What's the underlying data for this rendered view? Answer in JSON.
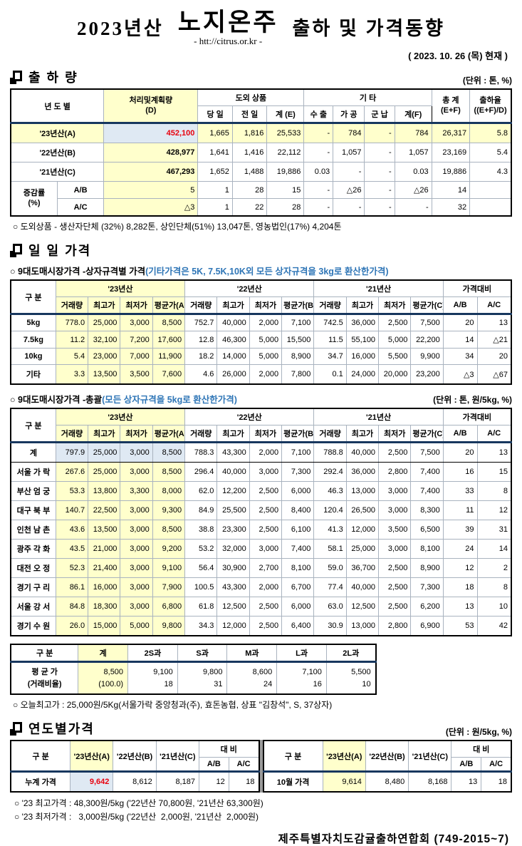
{
  "page": {
    "title_prefix": "2023년산",
    "title_main": "노지온주",
    "title_url": "- htt://citrus.or.kr -",
    "title_suffix": "출하 및 가격동향",
    "date_line": "( 2023. 10. 26 (목) 현재 )",
    "footer": "제주특별자치도감귤출하연합회 (749-2015~7)"
  },
  "colors": {
    "highlight_yellow": "#ffffcc",
    "highlight_blue": "#dfe9f3",
    "accent_red": "#e8000d",
    "note_blue": "#2e75b6",
    "header_line_navy": "#17375e"
  },
  "shipment": {
    "section_title": "출 하 량",
    "unit": "(단위 : 톤, %)",
    "headers": {
      "year": "년 도 별",
      "plan1": "처리및계획량",
      "plan2": "(D)",
      "group_island": "도외 상품",
      "day": "당 일",
      "prev": "전 일",
      "sumE": "계 (E)",
      "group_etc": "기          타",
      "export": "수 출",
      "process": "가 공",
      "military": "군 납",
      "sumF": "계(F)",
      "total1": "총  계",
      "total2": "(E+F)",
      "rate1": "출하율",
      "rate2": "((E+F)/D)"
    },
    "rows": [
      {
        "label": "'23년산(A)",
        "plan": "452,100",
        "cells": [
          "1,665",
          "1,816",
          "25,533",
          "-",
          "784",
          "-",
          "784",
          "26,317",
          "5.8"
        ]
      },
      {
        "label": "'22년산(B)",
        "plan": "428,977",
        "cells": [
          "1,641",
          "1,416",
          "22,112",
          "-",
          "1,057",
          "-",
          "1,057",
          "23,169",
          "5.4"
        ]
      },
      {
        "label": "'21년산(C)",
        "plan": "467,293",
        "cells": [
          "1,652",
          "1,488",
          "19,886",
          "0.03",
          "-",
          "-",
          "0.03",
          "19,886",
          "4.3"
        ]
      }
    ],
    "change_label1": "증감률",
    "change_label2": "(%)",
    "change_rows": [
      {
        "label": "A/B",
        "plan": "5",
        "cells": [
          "1",
          "28",
          "15",
          "-",
          "△26",
          "-",
          "△26",
          "14",
          ""
        ]
      },
      {
        "label": "A/C",
        "plan": "△3",
        "cells": [
          "1",
          "22",
          "28",
          "-",
          "-",
          "-",
          "-",
          "32",
          ""
        ]
      }
    ],
    "note": "○ 도외상품 - 생산자단체 (32%) 8,282톤, 상인단체(51%) 13,047톤, 영농법인(17%) 4,204톤"
  },
  "daily": {
    "section_title": "일 일 가격",
    "box_sub_black": "○ 9대도매시장가격 -상자규격별 가격",
    "box_sub_blue": "(기타가격은 5K, 7.5K,10K외 모든 상자규격을 3kg로 환산한가격)",
    "col_group_label": "구  분",
    "year_groups": [
      "'23년산",
      "'22년산",
      "'21년산"
    ],
    "sub_cols_23": [
      "거래량",
      "최고가",
      "최저가",
      "평균가(A)"
    ],
    "sub_cols_22": [
      "거래량",
      "최고가",
      "최저가",
      "평균가(B)"
    ],
    "sub_cols_21": [
      "거래량",
      "최고가",
      "최저가",
      "평균가(C)"
    ],
    "compare_label": "가격대비",
    "compare_cols": [
      "A/B",
      "A/C"
    ],
    "box_rows": [
      [
        "5kg",
        "778.0",
        "25,000",
        "3,000",
        "8,500",
        "752.7",
        "40,000",
        "2,000",
        "7,100",
        "742.5",
        "36,000",
        "2,500",
        "7,500",
        "20",
        "13"
      ],
      [
        "7.5kg",
        "11.2",
        "32,100",
        "7,200",
        "17,600",
        "12.8",
        "46,300",
        "5,000",
        "15,500",
        "11.5",
        "55,100",
        "5,000",
        "22,200",
        "14",
        "△21"
      ],
      [
        "10kg",
        "5.4",
        "23,000",
        "7,000",
        "11,900",
        "18.2",
        "14,000",
        "5,000",
        "8,900",
        "34.7",
        "16,000",
        "5,500",
        "9,900",
        "34",
        "20"
      ],
      [
        "기타",
        "3.3",
        "13,500",
        "3,500",
        "7,600",
        "4.6",
        "26,000",
        "2,000",
        "7,800",
        "0.1",
        "24,000",
        "20,000",
        "23,200",
        "△3",
        "△67"
      ]
    ],
    "total_sub_black": "○ 9대도매시장가격 -총괄",
    "total_sub_blue": "(모든 상자규격을 5kg로 환산한가격)",
    "total_unit": "(단위 : 톤, 원/5kg, %)",
    "total_rows": [
      [
        "계",
        "797.9",
        "25,000",
        "3,000",
        "8,500",
        "788.3",
        "43,300",
        "2,000",
        "7,100",
        "788.8",
        "40,000",
        "2,500",
        "7,500",
        "20",
        "13"
      ],
      [
        "서울 가 락",
        "267.6",
        "25,000",
        "3,000",
        "8,500",
        "296.4",
        "40,000",
        "3,000",
        "7,300",
        "292.4",
        "36,000",
        "2,800",
        "7,400",
        "16",
        "15"
      ],
      [
        "부산 엄 궁",
        "53.3",
        "13,800",
        "3,300",
        "8,000",
        "62.0",
        "12,200",
        "2,500",
        "6,000",
        "46.3",
        "13,000",
        "3,000",
        "7,400",
        "33",
        "8"
      ],
      [
        "대구 북 부",
        "140.7",
        "22,500",
        "3,000",
        "9,300",
        "84.9",
        "25,500",
        "2,500",
        "8,400",
        "120.4",
        "26,500",
        "3,000",
        "8,300",
        "11",
        "12"
      ],
      [
        "인천 남 촌",
        "43.6",
        "13,500",
        "3,000",
        "8,500",
        "38.8",
        "23,300",
        "2,500",
        "6,100",
        "41.3",
        "12,000",
        "3,500",
        "6,500",
        "39",
        "31"
      ],
      [
        "광주 각 화",
        "43.5",
        "21,000",
        "3,000",
        "9,200",
        "53.2",
        "32,000",
        "3,000",
        "7,400",
        "58.1",
        "25,000",
        "3,000",
        "8,100",
        "24",
        "14"
      ],
      [
        "대전 오 정",
        "52.3",
        "21,400",
        "3,000",
        "9,100",
        "56.4",
        "30,900",
        "2,700",
        "8,100",
        "59.0",
        "36,700",
        "2,500",
        "8,900",
        "12",
        "2"
      ],
      [
        "경기 구 리",
        "86.1",
        "16,000",
        "3,000",
        "7,900",
        "100.5",
        "43,300",
        "2,000",
        "6,700",
        "77.4",
        "40,000",
        "2,500",
        "7,300",
        "18",
        "8"
      ],
      [
        "서울 강 서",
        "84.8",
        "18,300",
        "3,000",
        "6,800",
        "61.8",
        "12,500",
        "2,500",
        "6,000",
        "63.0",
        "12,500",
        "2,500",
        "6,200",
        "13",
        "10"
      ],
      [
        "경기 수 원",
        "26.0",
        "15,000",
        "5,000",
        "9,800",
        "34.3",
        "12,000",
        "2,500",
        "6,400",
        "30.9",
        "13,000",
        "2,800",
        "6,900",
        "53",
        "42"
      ]
    ]
  },
  "size_table": {
    "headers": [
      "구  분",
      "계",
      "2S과",
      "S과",
      "M과",
      "L과",
      "2L과"
    ],
    "row_label1": "평 균 가",
    "row_label2": "(거래비율)",
    "values": [
      "8,500",
      "9,100",
      "9,800",
      "8,600",
      "7,100",
      "5,500"
    ],
    "ratios": [
      "(100.0)",
      "18",
      "31",
      "24",
      "16",
      "10"
    ],
    "note": "○ 오늘최고가  : 25,000원/5Kg(서울가락 중앙청과(주), 효돈농협,  상표 \"김창석\", S, 37상자)"
  },
  "yearly": {
    "section_title": "연도별가격",
    "unit": "(단위 : 원/5kg, %)",
    "headers": {
      "label": "구      분",
      "y23": "'23년산(A)",
      "y22": "'22년산(B)",
      "y21": "'21년산(C)",
      "compare": "대      비",
      "ab": "A/B",
      "ac": "A/C"
    },
    "left": {
      "label": "누계 가격",
      "v23": "9,642",
      "v22": "8,612",
      "v21": "8,187",
      "ab": "12",
      "ac": "18"
    },
    "right": {
      "label": "10월 가격",
      "v23": "9,614",
      "v22": "8,480",
      "v21": "8,168",
      "ab": "13",
      "ac": "18"
    },
    "note1": "○ '23 최고가격 : 48,300원/5kg ('22년산 70,800원, '21년산 63,300원)",
    "note2": "○ '23 최저가격 :   3,000원/5kg ('22년산  2,000원, '21년산  2,000원)"
  }
}
